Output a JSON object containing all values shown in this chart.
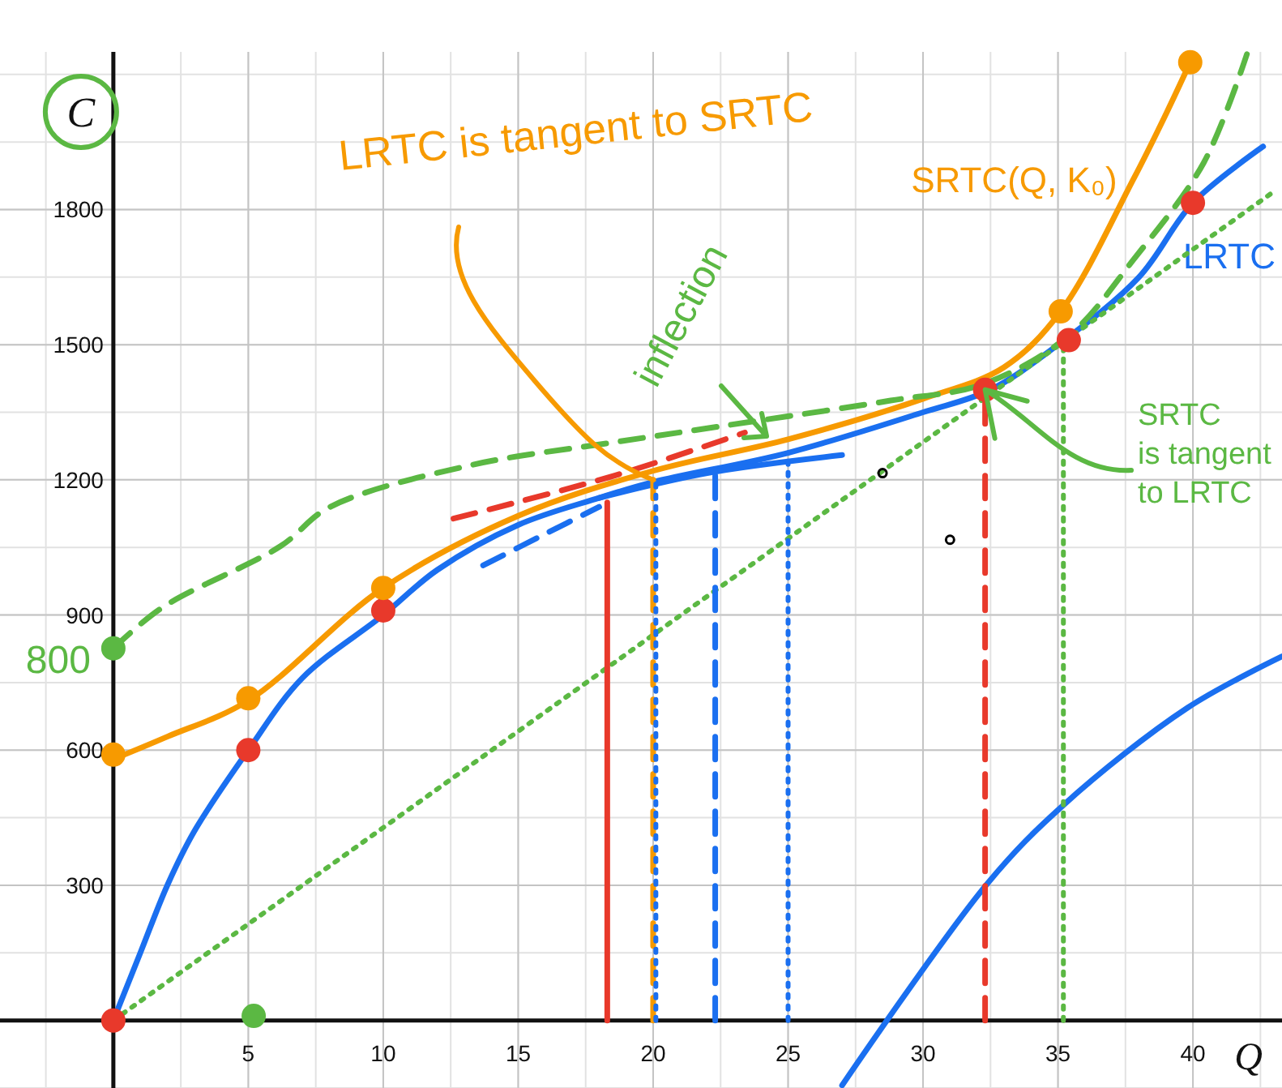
{
  "chart_data": {
    "type": "line",
    "xlabel": "Q",
    "ylabel": "C",
    "xlim": [
      -4.2,
      43.3
    ],
    "ylim": [
      -150,
      2150
    ],
    "xticks": [
      5,
      10,
      15,
      20,
      25,
      30,
      35,
      40
    ],
    "yticks": [
      300,
      600,
      900,
      1200,
      1500,
      1800
    ],
    "grid": true,
    "annotations": [
      {
        "text": "LRTC is tangent to SRTC",
        "x": 20,
        "y": 1200
      },
      "inflection",
      {
        "text": "SRTC is tangent to LRTC",
        "x": 32.3,
        "y": 1400
      },
      {
        "text": "800",
        "x": 0,
        "y": 800
      }
    ],
    "series": [
      {
        "name": "LRTC",
        "color": "#1a6ff0",
        "line_style": "solid",
        "x": [
          0,
          1,
          2,
          3,
          5,
          7,
          10,
          12,
          15,
          18,
          20,
          25,
          30,
          32.5,
          35,
          38,
          40,
          42.6
        ],
        "values": [
          0,
          150,
          300,
          420,
          600,
          760,
          900,
          1000,
          1100,
          1160,
          1195,
          1260,
          1350,
          1400,
          1500,
          1650,
          1815,
          1940
        ]
      },
      {
        "name": "SRTC(Q, K₀)",
        "color": "#f79a00",
        "line_style": "solid",
        "x": [
          0,
          2,
          5,
          10,
          15,
          20,
          25,
          30,
          33,
          35.1,
          37.8,
          39,
          39.9
        ],
        "values": [
          580,
          630,
          710,
          960,
          1120,
          1220,
          1290,
          1380,
          1450,
          1574,
          1868,
          2012,
          2127
        ]
      },
      {
        "color": "#5bb843",
        "line_style": "dashed",
        "x": [
          0,
          1.8,
          6.2,
          8,
          13.2,
          18.4,
          22.4,
          28.8,
          32.2,
          35.4,
          37.8,
          40.4,
          42
        ],
        "values": [
          826,
          916,
          1053,
          1139,
          1232,
          1282,
          1318,
          1376,
          1412,
          1520,
          1689,
          1904,
          2145
        ]
      },
      {
        "color": "#5bb843",
        "line_style": "dotted",
        "x": [
          0,
          43
        ],
        "values": [
          0,
          1840
        ]
      },
      {
        "color": "#1a6ff0",
        "line_style": "solid",
        "x": [
          27,
          32.4,
          35.2,
          39.8,
          43.3
        ],
        "values": [
          -144,
          305,
          478,
          694,
          808
        ]
      },
      {
        "color": "#1a6ff0",
        "line_style": "solid",
        "x": [
          18,
          22,
          27
        ],
        "values": [
          1160,
          1215,
          1255
        ]
      },
      {
        "color": "#1a6ff0",
        "line_style": "dashed",
        "x": [
          13.7,
          16,
          18
        ],
        "values": [
          1010,
          1080,
          1140
        ]
      },
      {
        "color": "#e8392b",
        "line_style": "dashed",
        "x": [
          12.6,
          18.6,
          23.4
        ],
        "values": [
          1114,
          1210,
          1305
        ]
      },
      {
        "color": "#e8392b",
        "line_style": "solid",
        "x": [
          18.3,
          18.3
        ],
        "values": [
          0,
          1150
        ]
      },
      {
        "color": "#f79a00",
        "line_style": "dashed",
        "x": [
          20,
          20
        ],
        "values": [
          0,
          1200
        ]
      },
      {
        "color": "#1a6ff0",
        "line_style": "dotted",
        "x": [
          20.1,
          20.1
        ],
        "values": [
          0,
          1200
        ]
      },
      {
        "color": "#1a6ff0",
        "line_style": "dashed",
        "x": [
          22.3,
          22.3
        ],
        "values": [
          0,
          1230
        ]
      },
      {
        "color": "#1a6ff0",
        "line_style": "dotted",
        "x": [
          25,
          25
        ],
        "values": [
          0,
          1260
        ]
      },
      {
        "color": "#e8392b",
        "line_style": "dashed",
        "x": [
          32.3,
          32.3
        ],
        "values": [
          0,
          1400
        ]
      },
      {
        "color": "#5bb843",
        "line_style": "dotted",
        "x": [
          35.2,
          35.2
        ],
        "values": [
          0,
          1510
        ]
      },
      {
        "type": "scatter",
        "marker": "circle",
        "color": "#e8392b",
        "x": [
          0,
          5,
          10,
          32.3,
          35.4,
          40
        ],
        "values": [
          0,
          600,
          910,
          1400,
          1510,
          1815
        ]
      },
      {
        "type": "scatter",
        "marker": "circle",
        "color": "#f79a00",
        "x": [
          0,
          5,
          10,
          35.1,
          39.9
        ],
        "values": [
          590,
          715,
          960,
          1574,
          2127
        ]
      },
      {
        "type": "scatter",
        "marker": "circle",
        "color": "#5bb843",
        "x": [
          0,
          5.2
        ],
        "values": [
          826,
          10
        ]
      },
      {
        "type": "scatter",
        "marker": "circle",
        "color": "#000000",
        "x": [
          28.5,
          31
        ],
        "values": [
          1215,
          1067
        ]
      }
    ]
  }
}
